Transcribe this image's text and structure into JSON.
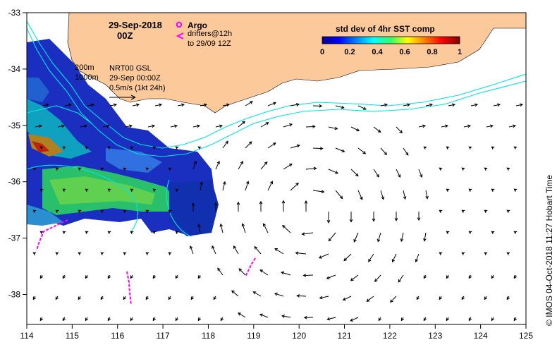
{
  "title": {
    "date": "29-Sep-2018",
    "time": "00Z"
  },
  "legend_argo": {
    "symbol_label": "Argo",
    "drifters_line1": "drifters@12h",
    "drifters_line2": "to 29/09 12Z"
  },
  "depth_contours": [
    "200m",
    "1000m"
  ],
  "product": {
    "line1": "NRT00 GSL",
    "line2": "29-Sep 00:00Z",
    "line3": "0.5m/s (1kt 24h)"
  },
  "colorbar": {
    "title": "std dev of 4hr SST comp",
    "ticks": [
      "0",
      "0.2",
      "0.4",
      "0.6",
      "0.8",
      "1"
    ]
  },
  "x_ticks": [
    "114",
    "115",
    "116",
    "117",
    "118",
    "119",
    "120",
    "121",
    "122",
    "123",
    "124",
    "125"
  ],
  "y_ticks": [
    "-33",
    "-34",
    "-35",
    "-36",
    "-37",
    "-38"
  ],
  "credit": "© IMOS 04-Oct-2018 11:27 Hobart Time",
  "colors": {
    "land": "#FCC99A",
    "contour": "#00E5E5",
    "argo": "#FF00FF",
    "arrow": "#000000"
  },
  "chart_data": {
    "type": "map",
    "lon_range": [
      114,
      125
    ],
    "lat_range": [
      -38.6,
      -33
    ],
    "colorbar_range": [
      0,
      1
    ]
  }
}
